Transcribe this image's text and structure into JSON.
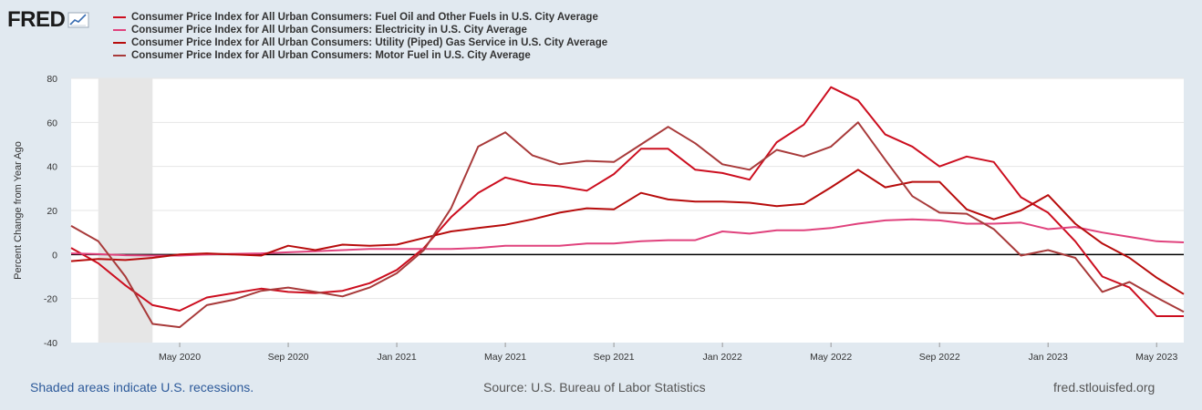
{
  "logo": {
    "text": "FRED"
  },
  "footer": {
    "recession_note": "Shaded areas indicate U.S. recessions.",
    "source": "Source: U.S. Bureau of Labor Statistics",
    "site": "fred.stlouisfed.org"
  },
  "colors": {
    "background": "#e1e9f0",
    "plot_background": "#ffffff",
    "recession_shade": "#e6e6e6",
    "zero_line": "#000000"
  },
  "chart_data": {
    "type": "line",
    "ylabel": "Percent Change from Year Ago",
    "xlabel": "",
    "ylim": [
      -40,
      80
    ],
    "yticks": [
      -40,
      -20,
      0,
      20,
      40,
      60,
      80
    ],
    "grid": true,
    "x_start": "2020-01",
    "x_end": "2023-06",
    "xtick_labels": [
      "May 2020",
      "Sep 2020",
      "Jan 2021",
      "May 2021",
      "Sep 2021",
      "Jan 2022",
      "May 2022",
      "Sep 2022",
      "Jan 2023",
      "May 2023"
    ],
    "xtick_months": [
      4,
      8,
      12,
      16,
      20,
      24,
      28,
      32,
      36,
      40
    ],
    "recessions": [
      {
        "start_month": 1,
        "end_month": 3
      }
    ],
    "series": [
      {
        "name": "Consumer Price Index for All Urban Consumers: Fuel Oil and Other Fuels in U.S. City Average",
        "color": "#cc0e1f",
        "values": [
          3,
          -4,
          -14,
          -23,
          -25.5,
          -19.5,
          -17.5,
          -15.5,
          -17,
          -17.5,
          -16.5,
          -13,
          -7,
          3,
          17,
          28,
          35,
          32,
          31,
          29,
          36.5,
          48,
          48,
          38.5,
          37,
          34,
          51,
          59,
          76,
          70,
          54.5,
          49,
          40,
          44.5,
          42,
          26,
          19,
          6,
          -10,
          -15,
          -28,
          -28
        ]
      },
      {
        "name": "Consumer Price Index for All Urban Consumers: Electricity in U.S. City Average",
        "color": "#e0427d",
        "values": [
          0.5,
          0.2,
          -0.3,
          -0.5,
          -0.5,
          0,
          0.3,
          0.5,
          1,
          1.5,
          2,
          2.5,
          2.5,
          2.5,
          2.5,
          3,
          4,
          4,
          4,
          5,
          5,
          6,
          6.5,
          6.5,
          10.5,
          9.5,
          11,
          11,
          12,
          14,
          15.5,
          16,
          15.5,
          14,
          14,
          14.5,
          11.5,
          12.5,
          10,
          8,
          6,
          5.5
        ]
      },
      {
        "name": "Consumer Price Index for All Urban Consumers: Utility (Piped) Gas Service in U.S. City Average",
        "color": "#b70c0c",
        "values": [
          -3,
          -2,
          -2.5,
          -1.5,
          0,
          0.5,
          0,
          -0.5,
          4,
          2,
          4.5,
          4,
          4.5,
          7.5,
          10.5,
          12,
          13.5,
          16,
          19,
          21,
          20.5,
          28,
          25,
          24,
          24,
          23.5,
          22,
          23,
          30.5,
          38.5,
          30.5,
          33,
          33,
          20.5,
          16,
          20,
          27,
          14,
          5,
          -1.5,
          -10.5,
          -18
        ]
      },
      {
        "name": "Consumer Price Index for All Urban Consumers: Motor Fuel in U.S. City Average",
        "color": "#a83a3a",
        "values": [
          13,
          6,
          -10,
          -31.5,
          -33,
          -23,
          -20.5,
          -16.5,
          -15,
          -17,
          -19,
          -15,
          -8.5,
          2,
          21,
          49,
          55.5,
          45,
          41,
          42.5,
          42,
          50,
          58,
          50.5,
          41,
          38.5,
          47.5,
          44.5,
          49,
          60,
          43,
          26.5,
          19,
          18.5,
          11.5,
          -0.5,
          2,
          -1.5,
          -17,
          -12.5,
          -19.5,
          -26
        ]
      }
    ]
  }
}
